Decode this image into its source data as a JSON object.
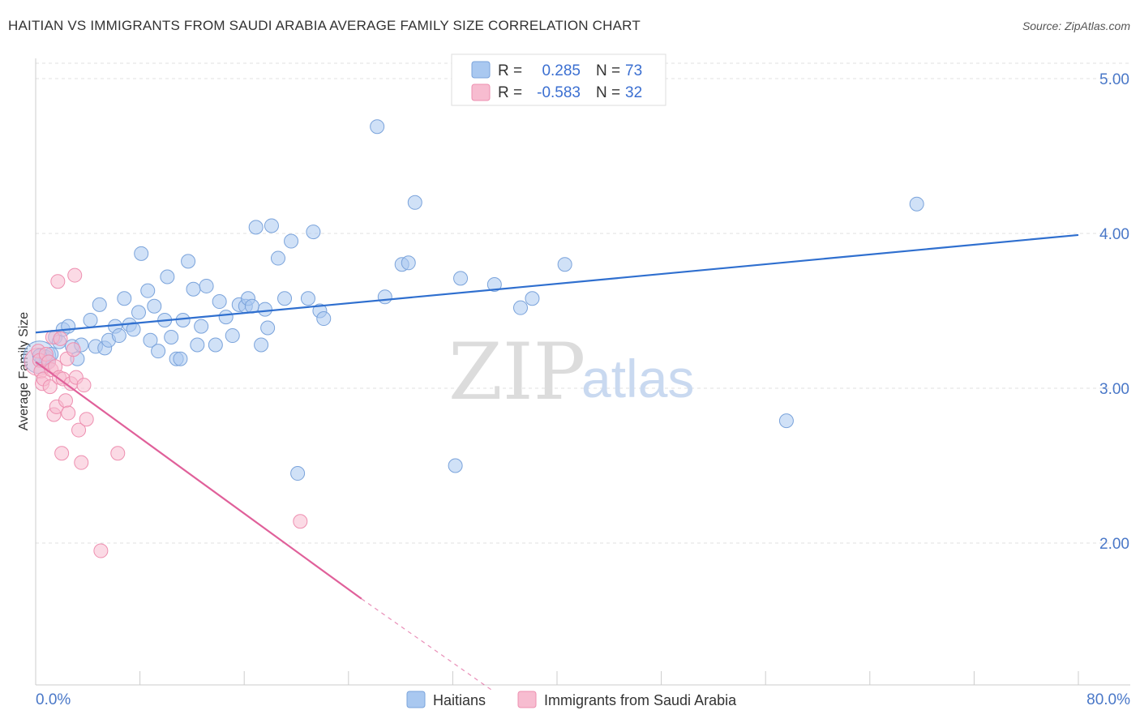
{
  "title": "HAITIAN VS IMMIGRANTS FROM SAUDI ARABIA AVERAGE FAMILY SIZE CORRELATION CHART",
  "source": "Source: ZipAtlas.com",
  "watermark": {
    "zip": "ZIP",
    "atlas": "atlas"
  },
  "chart_data": {
    "type": "scatter",
    "title": "HAITIAN VS IMMIGRANTS FROM SAUDI ARABIA AVERAGE FAMILY SIZE CORRELATION CHART",
    "xlabel": "",
    "ylabel": "Average Family Size",
    "xlim": [
      0,
      80
    ],
    "ylim": [
      1.0,
      5.2
    ],
    "x_tick_labels": [
      "0.0%",
      "80.0%"
    ],
    "y_ticks": [
      2.0,
      3.0,
      4.0,
      5.0
    ],
    "y_tick_labels": [
      "2.00",
      "3.00",
      "4.00",
      "5.00"
    ],
    "grid": "horizontal dashed",
    "legend": {
      "r_label": "R =",
      "n_label": "N =",
      "entries": [
        {
          "r": "0.285",
          "n": "73"
        },
        {
          "r": "-0.583",
          "n": "32"
        }
      ]
    },
    "series": [
      {
        "name": "Haitians",
        "color": "#a9c8f0",
        "stroke": "#7aa3db",
        "line_color": "#2f6fcf",
        "trend": {
          "x": [
            0,
            80
          ],
          "y": [
            3.36,
            3.99
          ]
        },
        "points": [
          [
            0.5,
            3.18
          ],
          [
            0.8,
            3.2
          ],
          [
            1.2,
            3.22
          ],
          [
            1.5,
            3.33
          ],
          [
            1.8,
            3.3
          ],
          [
            2.1,
            3.38
          ],
          [
            2.5,
            3.4
          ],
          [
            2.8,
            3.27
          ],
          [
            3.2,
            3.19
          ],
          [
            3.5,
            3.28
          ],
          [
            4.2,
            3.44
          ],
          [
            4.6,
            3.27
          ],
          [
            4.9,
            3.54
          ],
          [
            5.3,
            3.26
          ],
          [
            5.6,
            3.31
          ],
          [
            6.1,
            3.4
          ],
          [
            6.4,
            3.34
          ],
          [
            6.8,
            3.58
          ],
          [
            7.2,
            3.41
          ],
          [
            7.5,
            3.38
          ],
          [
            7.9,
            3.49
          ],
          [
            8.1,
            3.87
          ],
          [
            8.6,
            3.63
          ],
          [
            8.8,
            3.31
          ],
          [
            9.1,
            3.53
          ],
          [
            9.4,
            3.24
          ],
          [
            9.9,
            3.44
          ],
          [
            10.1,
            3.72
          ],
          [
            10.4,
            3.33
          ],
          [
            10.8,
            3.19
          ],
          [
            11.1,
            3.19
          ],
          [
            11.3,
            3.44
          ],
          [
            11.7,
            3.82
          ],
          [
            12.1,
            3.64
          ],
          [
            12.4,
            3.28
          ],
          [
            12.7,
            3.4
          ],
          [
            13.1,
            3.66
          ],
          [
            13.8,
            3.28
          ],
          [
            14.1,
            3.56
          ],
          [
            14.6,
            3.46
          ],
          [
            15.1,
            3.34
          ],
          [
            15.6,
            3.54
          ],
          [
            16.1,
            3.53
          ],
          [
            16.3,
            3.58
          ],
          [
            16.6,
            3.53
          ],
          [
            16.9,
            4.04
          ],
          [
            17.3,
            3.28
          ],
          [
            17.6,
            3.51
          ],
          [
            17.8,
            3.39
          ],
          [
            18.1,
            4.05
          ],
          [
            18.6,
            3.84
          ],
          [
            19.1,
            3.58
          ],
          [
            19.6,
            3.95
          ],
          [
            20.1,
            2.45
          ],
          [
            20.9,
            3.58
          ],
          [
            21.3,
            4.01
          ],
          [
            21.8,
            3.5
          ],
          [
            22.1,
            3.45
          ],
          [
            26.2,
            4.69
          ],
          [
            26.8,
            3.59
          ],
          [
            28.1,
            3.8
          ],
          [
            28.6,
            3.81
          ],
          [
            29.1,
            4.2
          ],
          [
            32.2,
            2.5
          ],
          [
            32.6,
            3.71
          ],
          [
            35.2,
            3.67
          ],
          [
            37.2,
            3.52
          ],
          [
            38.1,
            3.58
          ],
          [
            40.6,
            3.8
          ],
          [
            57.6,
            2.79
          ],
          [
            67.6,
            4.19
          ],
          [
            0.3,
            3.21
          ],
          [
            1.0,
            3.17
          ]
        ]
      },
      {
        "name": "Immigrants from Saudi Arabia",
        "color": "#f7bcd0",
        "stroke": "#ee8fb0",
        "line_color": "#e0609a",
        "trend": {
          "x": [
            0,
            25
          ],
          "y": [
            3.17,
            1.64
          ]
        },
        "trend_dashed": {
          "x": [
            25,
            35
          ],
          "y": [
            1.64,
            1.05
          ]
        },
        "points": [
          [
            0.2,
            3.24
          ],
          [
            0.3,
            3.18
          ],
          [
            0.4,
            3.11
          ],
          [
            0.5,
            3.03
          ],
          [
            0.6,
            3.06
          ],
          [
            0.8,
            3.22
          ],
          [
            1.0,
            3.17
          ],
          [
            1.1,
            3.01
          ],
          [
            1.2,
            3.12
          ],
          [
            1.3,
            3.33
          ],
          [
            1.4,
            2.83
          ],
          [
            1.5,
            3.14
          ],
          [
            1.6,
            2.88
          ],
          [
            1.7,
            3.69
          ],
          [
            1.8,
            3.07
          ],
          [
            1.9,
            3.32
          ],
          [
            2.0,
            2.58
          ],
          [
            2.1,
            3.06
          ],
          [
            2.3,
            2.92
          ],
          [
            2.4,
            3.19
          ],
          [
            2.5,
            2.84
          ],
          [
            2.7,
            3.03
          ],
          [
            2.9,
            3.25
          ],
          [
            3.0,
            3.73
          ],
          [
            3.1,
            3.07
          ],
          [
            3.3,
            2.73
          ],
          [
            3.5,
            2.52
          ],
          [
            3.7,
            3.02
          ],
          [
            3.9,
            2.8
          ],
          [
            5.0,
            1.95
          ],
          [
            6.3,
            2.58
          ],
          [
            20.3,
            2.14
          ]
        ]
      }
    ]
  },
  "bottom_legend": [
    "Haitians",
    "Immigrants from Saudi Arabia"
  ]
}
